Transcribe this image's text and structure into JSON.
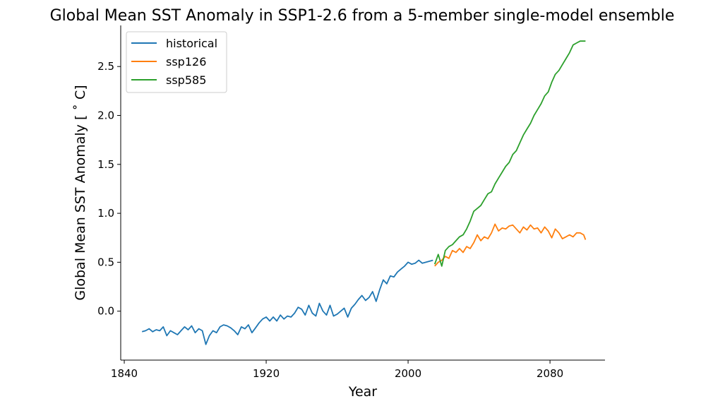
{
  "chart_data": {
    "type": "line",
    "title": "Global Mean SST Anomaly in SSP1-2.6 from a 5-member single-model ensemble",
    "xlabel": "Year",
    "ylabel": "Global Mean SST Anomaly [$^\\circ$C]",
    "ylabel_display": "Global Mean SST Anomaly [ ˚ C]",
    "xlim": [
      1838,
      2111
    ],
    "ylim": [
      -0.5,
      2.92
    ],
    "xticks": [
      1840,
      1920,
      2000,
      2080
    ],
    "yticks": [
      0.0,
      0.5,
      1.0,
      1.5,
      2.0,
      2.5
    ],
    "grid": false,
    "legend_position": "top-left",
    "series": [
      {
        "name": "historical",
        "color": "#1f77b4",
        "x": [
          1850,
          1852,
          1854,
          1856,
          1858,
          1860,
          1862,
          1864,
          1866,
          1868,
          1870,
          1872,
          1874,
          1876,
          1878,
          1880,
          1882,
          1884,
          1886,
          1888,
          1890,
          1892,
          1894,
          1896,
          1898,
          1900,
          1902,
          1904,
          1906,
          1908,
          1910,
          1912,
          1914,
          1916,
          1918,
          1920,
          1922,
          1924,
          1926,
          1928,
          1930,
          1932,
          1934,
          1936,
          1938,
          1940,
          1942,
          1944,
          1946,
          1948,
          1950,
          1952,
          1954,
          1956,
          1958,
          1960,
          1962,
          1964,
          1966,
          1968,
          1970,
          1972,
          1974,
          1976,
          1978,
          1980,
          1982,
          1984,
          1986,
          1988,
          1990,
          1992,
          1994,
          1996,
          1998,
          2000,
          2002,
          2004,
          2006,
          2008,
          2010,
          2012,
          2014
        ],
        "y": [
          -0.21,
          -0.2,
          -0.18,
          -0.21,
          -0.19,
          -0.2,
          -0.16,
          -0.25,
          -0.2,
          -0.22,
          -0.24,
          -0.2,
          -0.16,
          -0.19,
          -0.15,
          -0.22,
          -0.18,
          -0.2,
          -0.34,
          -0.25,
          -0.2,
          -0.22,
          -0.16,
          -0.14,
          -0.15,
          -0.17,
          -0.2,
          -0.24,
          -0.16,
          -0.18,
          -0.14,
          -0.22,
          -0.17,
          -0.12,
          -0.08,
          -0.06,
          -0.1,
          -0.06,
          -0.1,
          -0.04,
          -0.08,
          -0.05,
          -0.06,
          -0.02,
          0.04,
          0.02,
          -0.04,
          0.06,
          -0.02,
          -0.05,
          0.08,
          0.0,
          -0.04,
          0.06,
          -0.05,
          -0.03,
          0.0,
          0.03,
          -0.06,
          0.03,
          0.07,
          0.12,
          0.16,
          0.11,
          0.14,
          0.2,
          0.1,
          0.22,
          0.32,
          0.28,
          0.36,
          0.35,
          0.4,
          0.43,
          0.46,
          0.5,
          0.48,
          0.49,
          0.52,
          0.49,
          0.5,
          0.51,
          0.52
        ]
      },
      {
        "name": "ssp126",
        "color": "#ff7f0e",
        "x": [
          2015,
          2017,
          2019,
          2021,
          2023,
          2025,
          2027,
          2029,
          2031,
          2033,
          2035,
          2037,
          2039,
          2041,
          2043,
          2045,
          2047,
          2049,
          2051,
          2053,
          2055,
          2057,
          2059,
          2061,
          2063,
          2065,
          2067,
          2069,
          2071,
          2073,
          2075,
          2077,
          2079,
          2081,
          2083,
          2085,
          2087,
          2089,
          2091,
          2093,
          2095,
          2097,
          2099,
          2100
        ],
        "y": [
          0.46,
          0.5,
          0.52,
          0.56,
          0.54,
          0.62,
          0.6,
          0.64,
          0.6,
          0.66,
          0.64,
          0.7,
          0.78,
          0.72,
          0.76,
          0.74,
          0.8,
          0.89,
          0.82,
          0.85,
          0.84,
          0.87,
          0.88,
          0.84,
          0.8,
          0.86,
          0.83,
          0.88,
          0.84,
          0.85,
          0.8,
          0.86,
          0.82,
          0.75,
          0.84,
          0.8,
          0.74,
          0.76,
          0.78,
          0.76,
          0.8,
          0.8,
          0.78,
          0.73
        ]
      },
      {
        "name": "ssp585",
        "color": "#2ca02c",
        "x": [
          2015,
          2017,
          2019,
          2021,
          2023,
          2025,
          2027,
          2029,
          2031,
          2033,
          2035,
          2037,
          2039,
          2041,
          2043,
          2045,
          2047,
          2049,
          2051,
          2053,
          2055,
          2057,
          2059,
          2061,
          2063,
          2065,
          2067,
          2069,
          2071,
          2073,
          2075,
          2077,
          2079,
          2081,
          2083,
          2085,
          2087,
          2089,
          2091,
          2093,
          2095,
          2097,
          2099,
          2100
        ],
        "y": [
          0.48,
          0.58,
          0.46,
          0.62,
          0.66,
          0.68,
          0.72,
          0.76,
          0.78,
          0.84,
          0.92,
          1.02,
          1.05,
          1.08,
          1.14,
          1.2,
          1.22,
          1.3,
          1.36,
          1.42,
          1.48,
          1.52,
          1.6,
          1.64,
          1.72,
          1.8,
          1.86,
          1.92,
          2.0,
          2.06,
          2.12,
          2.2,
          2.24,
          2.34,
          2.42,
          2.46,
          2.52,
          2.58,
          2.64,
          2.72,
          2.74,
          2.76,
          2.76,
          2.76
        ]
      }
    ]
  }
}
